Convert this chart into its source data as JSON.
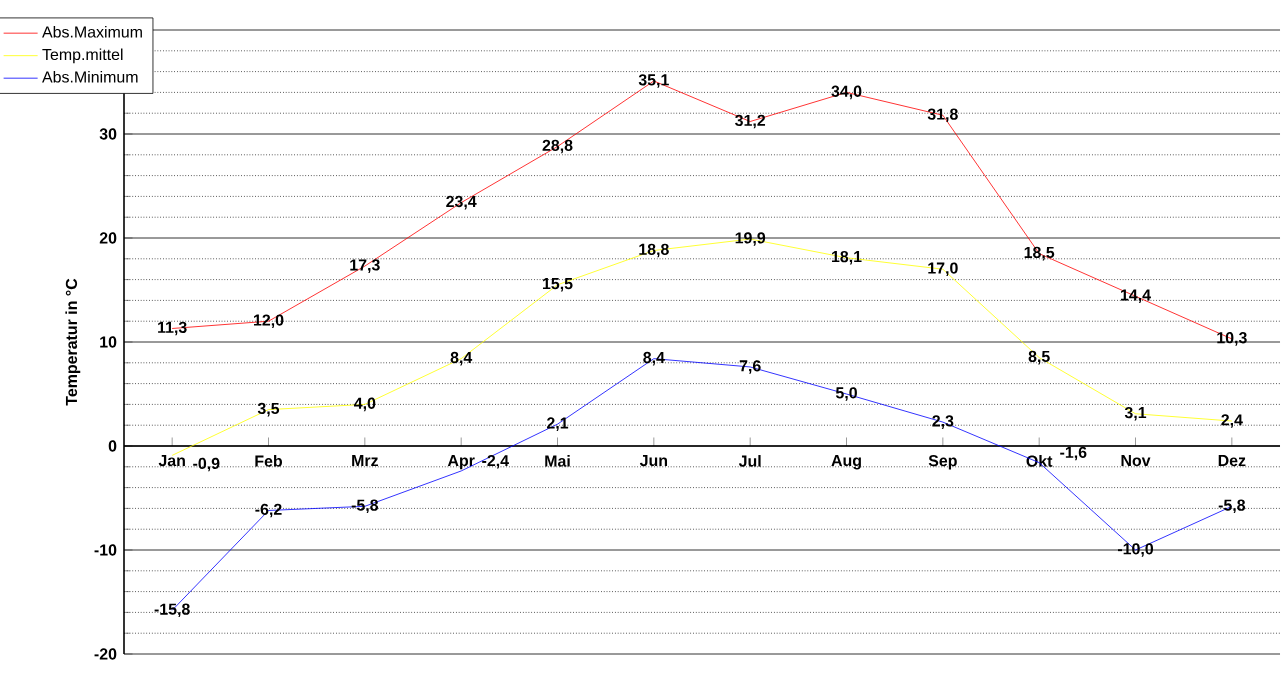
{
  "chart_data": {
    "type": "line",
    "ylabel": "Temperatur in °C",
    "categories": [
      "Jan",
      "Feb",
      "Mrz",
      "Apr",
      "Mai",
      "Jun",
      "Jul",
      "Aug",
      "Sep",
      "Okt",
      "Nov",
      "Dez"
    ],
    "series": [
      {
        "name": "Abs.Maximum",
        "color": "#ff0000",
        "values": [
          11.3,
          12.0,
          17.3,
          23.4,
          28.8,
          35.1,
          31.2,
          34.0,
          31.8,
          18.5,
          14.4,
          10.3
        ],
        "value_labels": [
          "11,3",
          "12,0",
          "17,3",
          "23,4",
          "28,8",
          "35,1",
          "31,2",
          "34,0",
          "31,8",
          "18,5",
          "14,4",
          "10,3"
        ]
      },
      {
        "name": "Temp.mittel",
        "color": "#ffff00",
        "values": [
          -0.9,
          3.5,
          4.0,
          8.4,
          15.5,
          18.8,
          19.9,
          18.1,
          17.0,
          8.5,
          3.1,
          2.4
        ],
        "value_labels": [
          "-0,9",
          "3,5",
          "4,0",
          "8,4",
          "15,5",
          "18,8",
          "19,9",
          "18,1",
          "17,0",
          "8,5",
          "3,1",
          "2,4"
        ]
      },
      {
        "name": "Abs.Minimum",
        "color": "#0000ff",
        "values": [
          -15.8,
          -6.2,
          -5.8,
          -2.4,
          2.1,
          8.4,
          7.6,
          5.0,
          2.3,
          -1.6,
          -10.0,
          -5.8
        ],
        "value_labels": [
          "-15,8",
          "-6,2",
          "-5,8",
          "-2,4",
          "2,1",
          "8,4",
          "7,6",
          "5,0",
          "2,3",
          "-1,6",
          "-10,0",
          "-5,8"
        ]
      }
    ],
    "ylim": [
      -20,
      40
    ],
    "yticks": [
      -20,
      -10,
      0,
      10,
      20,
      30,
      {
        "value": 40,
        "label": null
      }
    ],
    "grid": "y",
    "legend": "top left",
    "marker": "none",
    "line_style": "solid"
  }
}
